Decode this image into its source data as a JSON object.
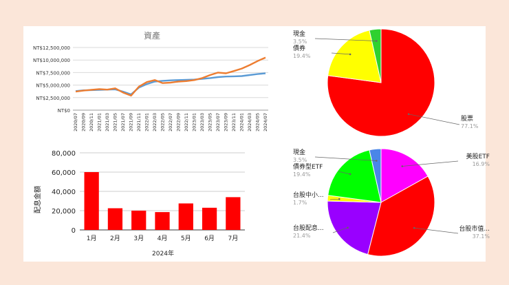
{
  "chart_data": [
    {
      "type": "line",
      "title": "資產",
      "y_ticks": [
        "NT$12,500,000",
        "NT$10,000,000",
        "NT$7,500,000",
        "NT$5,000,000",
        "NT$2,500,000",
        "NT$0"
      ],
      "ylim": [
        0,
        12500000
      ],
      "x": [
        "2020/07",
        "2020/09",
        "2020/11",
        "2021/01",
        "2021/03",
        "2021/05",
        "2021/07",
        "2021/09",
        "2021/11",
        "2022/01",
        "2022/03",
        "2022/05",
        "2022/07",
        "2022/09",
        "2022/11",
        "2023/01",
        "2023/03",
        "2023/05",
        "2023/07",
        "2023/09",
        "2023/11",
        "2024/01",
        "2024/03",
        "2024/05",
        "2024/07"
      ],
      "grid": true,
      "series": [
        {
          "color": "#5b9bd5",
          "values": [
            3800000,
            3950000,
            4000000,
            4050000,
            4100000,
            4150000,
            3700000,
            3150000,
            4500000,
            5200000,
            5700000,
            5850000,
            5950000,
            6000000,
            6050000,
            6100000,
            6250000,
            6400000,
            6600000,
            6700000,
            6750000,
            6800000,
            7000000,
            7200000,
            7350000
          ]
        },
        {
          "color": "#ed7d31",
          "values": [
            3700000,
            3900000,
            4050000,
            4200000,
            4100000,
            4350000,
            3500000,
            2900000,
            4700000,
            5600000,
            6000000,
            5400000,
            5500000,
            5700000,
            5800000,
            6000000,
            6400000,
            7000000,
            7500000,
            7350000,
            7800000,
            8300000,
            9000000,
            9800000,
            10500000
          ]
        }
      ]
    },
    {
      "type": "bar",
      "categories": [
        "1月",
        "2月",
        "3月",
        "4月",
        "5月",
        "6月",
        "7月"
      ],
      "values": [
        60000,
        22500,
        20000,
        18500,
        27500,
        23000,
        34000
      ],
      "xlabel": "2024年",
      "ylabel": "配息金額",
      "ylim": [
        0,
        80000
      ],
      "y_ticks": [
        "80,000",
        "60,000",
        "40,000",
        "20,000",
        "0"
      ],
      "color": "#ff0000"
    },
    {
      "type": "pie",
      "slices": [
        {
          "label": "股票",
          "value": 77.1,
          "pct": "77.1%",
          "color": "#ff0000"
        },
        {
          "label": "債券",
          "value": 19.4,
          "pct": "19.4%",
          "color": "#ffff00"
        },
        {
          "label": "現金",
          "value": 3.5,
          "pct": "3.5%",
          "color": "#2fd12f"
        }
      ]
    },
    {
      "type": "pie",
      "slices": [
        {
          "label": "美股ETF",
          "value": 16.9,
          "pct": "16.9%",
          "color": "#ff00ff"
        },
        {
          "label": "台股市值...",
          "value": 37.1,
          "pct": "37.1%",
          "color": "#ff0000"
        },
        {
          "label": "台股配息...",
          "value": 21.4,
          "pct": "21.4%",
          "color": "#9900ff"
        },
        {
          "label": "台股中小...",
          "value": 1.7,
          "pct": "1.7%",
          "color": "#ffff00"
        },
        {
          "label": "債券型ETF",
          "value": 19.4,
          "pct": "19.4%",
          "color": "#00ff00"
        },
        {
          "label": "現金",
          "value": 3.5,
          "pct": "3.5%",
          "color": "#4a86e8"
        }
      ]
    }
  ]
}
